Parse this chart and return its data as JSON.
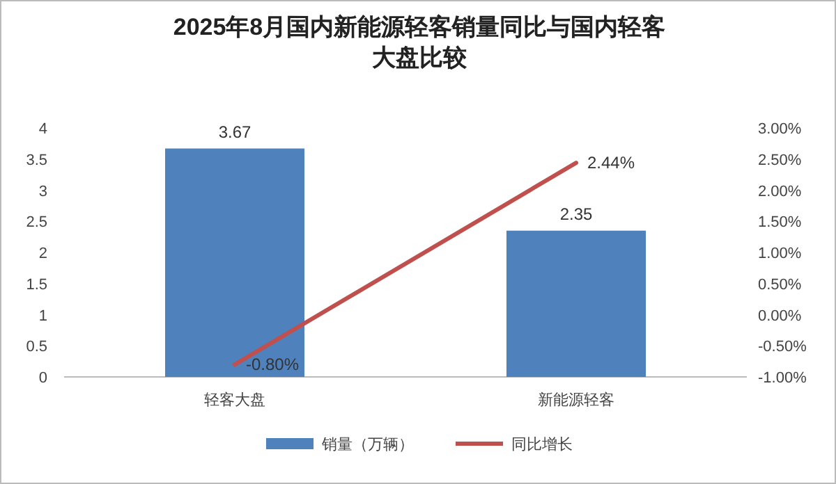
{
  "chart_data": {
    "type": "bar",
    "title": "2025年8月国内新能源轻客销量同比与国内轻客大盘比较",
    "categories": [
      "轻客大盘",
      "新能源轻客"
    ],
    "series": [
      {
        "name": "销量（万辆）",
        "color": "#4f81bd",
        "values": [
          3.67,
          2.35
        ],
        "value_labels": [
          "3.67",
          "2.35"
        ]
      },
      {
        "name": "同比增长",
        "type": "line",
        "axis": "y2",
        "color": "#c0504d",
        "values": [
          -0.8,
          2.44
        ],
        "value_labels": [
          "-0.80%",
          "2.44%"
        ]
      }
    ],
    "ylim": [
      0,
      4
    ],
    "yticks": [
      0,
      0.5,
      1,
      1.5,
      2,
      2.5,
      3,
      3.5,
      4
    ],
    "y2lim": [
      -1,
      3
    ],
    "y2ticks": [
      {
        "value": -1,
        "label": "-1.00%"
      },
      {
        "value": -0.5,
        "label": "-0.50%"
      },
      {
        "value": 0,
        "label": "0.00%"
      },
      {
        "value": 0.5,
        "label": "0.50%"
      },
      {
        "value": 1,
        "label": "1.00%"
      },
      {
        "value": 1.5,
        "label": "1.50%"
      },
      {
        "value": 2,
        "label": "2.00%"
      },
      {
        "value": 2.5,
        "label": "2.50%"
      },
      {
        "value": 3,
        "label": "3.00%"
      }
    ],
    "legend": "bottom",
    "grid": false,
    "marker": "none",
    "line_style": "solid"
  }
}
